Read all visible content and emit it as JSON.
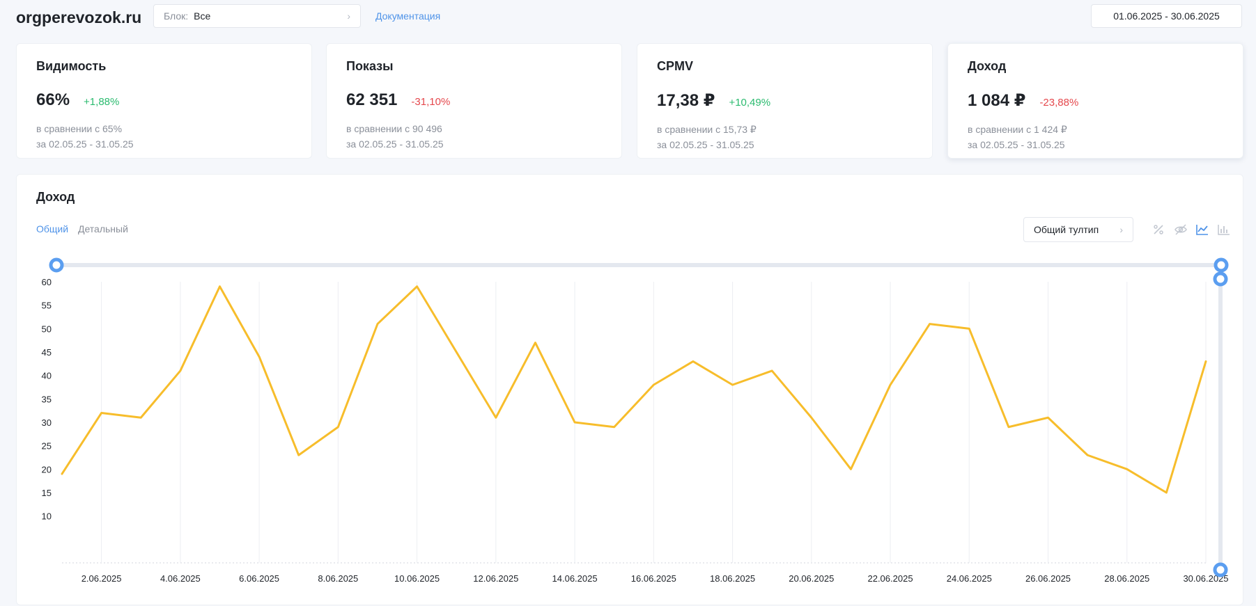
{
  "header": {
    "logo": "orgperevozok.ru",
    "block_label": "Блок:",
    "block_value": "Все",
    "docs_link": "Документация",
    "date_range": "01.06.2025 - 30.06.2025"
  },
  "cards": [
    {
      "title": "Видимость",
      "value": "66%",
      "delta": "+1,88%",
      "delta_trend": "up",
      "compare": "в сравнении с 65%",
      "period": "за 02.05.25 - 31.05.25"
    },
    {
      "title": "Показы",
      "value": "62 351",
      "delta": "-31,10%",
      "delta_trend": "down",
      "compare": "в сравнении с 90 496",
      "period": "за 02.05.25 - 31.05.25"
    },
    {
      "title": "CPMV",
      "value": "17,38 ₽",
      "delta": "+10,49%",
      "delta_trend": "up",
      "compare": "в сравнении с 15,73 ₽",
      "period": "за 02.05.25 - 31.05.25"
    },
    {
      "title": "Доход",
      "value": "1 084 ₽",
      "delta": "-23,88%",
      "delta_trend": "down",
      "compare": "в сравнении с 1 424 ₽",
      "period": "за 02.05.25 - 31.05.25"
    }
  ],
  "panel": {
    "title": "Доход",
    "tabs": [
      {
        "label": "Общий",
        "active": true
      },
      {
        "label": "Детальный",
        "active": false
      }
    ],
    "tooltip_select": "Общий тултип",
    "icons": [
      "percent-icon",
      "eye-off-icon",
      "line-chart-icon",
      "bar-chart-icon"
    ]
  },
  "colors": {
    "accent": "#4f93e8",
    "series": "#f7bd2b",
    "positive": "#2bbb6f",
    "negative": "#e5484d"
  },
  "chart_data": {
    "type": "line",
    "title": "",
    "xlabel": "",
    "ylabel": "",
    "x": [
      "1.06.2025",
      "2.06.2025",
      "3.06.2025",
      "4.06.2025",
      "5.06.2025",
      "6.06.2025",
      "7.06.2025",
      "8.06.2025",
      "9.06.2025",
      "10.06.2025",
      "11.06.2025",
      "12.06.2025",
      "13.06.2025",
      "14.06.2025",
      "15.06.2025",
      "16.06.2025",
      "17.06.2025",
      "18.06.2025",
      "19.06.2025",
      "20.06.2025",
      "21.06.2025",
      "22.06.2025",
      "23.06.2025",
      "24.06.2025",
      "25.06.2025",
      "26.06.2025",
      "27.06.2025",
      "28.06.2025",
      "29.06.2025",
      "30.06.2025"
    ],
    "x_tick_labels": [
      "2.06.2025",
      "4.06.2025",
      "6.06.2025",
      "8.06.2025",
      "10.06.2025",
      "12.06.2025",
      "14.06.2025",
      "16.06.2025",
      "18.06.2025",
      "20.06.2025",
      "22.06.2025",
      "24.06.2025",
      "26.06.2025",
      "28.06.2025",
      "30.06.2025"
    ],
    "y_ticks": [
      60,
      55,
      50,
      45,
      40,
      35,
      30,
      25,
      20,
      15,
      10
    ],
    "ylim": [
      0,
      60
    ],
    "grid": true,
    "series": [
      {
        "values": [
          19,
          32,
          31,
          41,
          59,
          44,
          23,
          29,
          51,
          59,
          45,
          31,
          47,
          30,
          29,
          38,
          43,
          38,
          41,
          31,
          20,
          38,
          51,
          50,
          29,
          31,
          23,
          20,
          15,
          43
        ]
      }
    ]
  }
}
